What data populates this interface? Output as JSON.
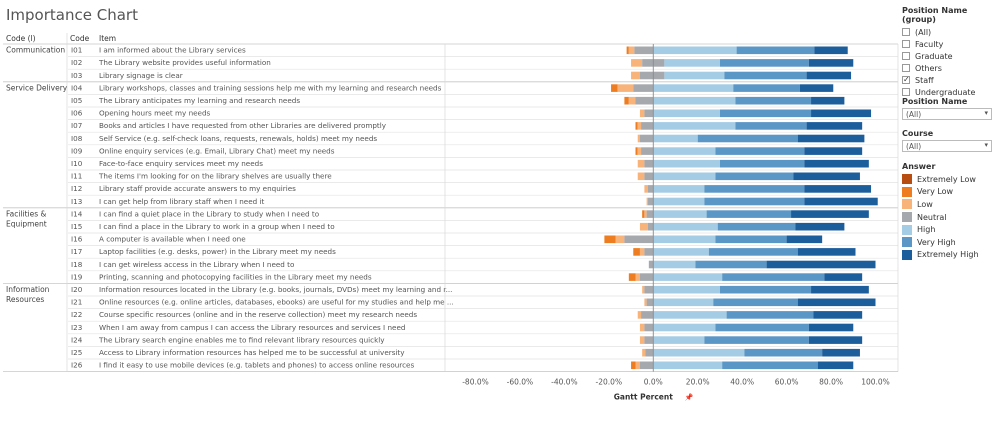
{
  "title": "Importance Chart",
  "columns": {
    "group": "Code (l)",
    "code": "Code",
    "item": "Item"
  },
  "axis": {
    "label": "Gantt Percent",
    "pin": "📌",
    "ticks": [
      "-80.0%",
      "-60.0%",
      "-40.0%",
      "-20.0%",
      "0.0%",
      "20.0%",
      "40.0%",
      "60.0%",
      "80.0%",
      "100.0%"
    ],
    "tick_values": [
      -80,
      -60,
      -40,
      -20,
      0,
      20,
      40,
      60,
      80,
      100
    ],
    "min": -92,
    "max": 108
  },
  "groups": [
    {
      "label_lines": [
        "Communication"
      ],
      "start": 0,
      "end": 2
    },
    {
      "label_lines": [
        "Service Delivery"
      ],
      "start": 3,
      "end": 12
    },
    {
      "label_lines": [
        "Facilities &",
        "Equipment"
      ],
      "start": 13,
      "end": 18
    },
    {
      "label_lines": [
        "Information",
        "Resources"
      ],
      "start": 19,
      "end": 25
    }
  ],
  "filters": {
    "position_group": {
      "title": "Position Name (group)",
      "options": [
        {
          "label": "(All)",
          "checked": false
        },
        {
          "label": "Faculty",
          "checked": false
        },
        {
          "label": "Graduate",
          "checked": false
        },
        {
          "label": "Others",
          "checked": false
        },
        {
          "label": "Staff",
          "checked": true
        },
        {
          "label": "Undergraduate",
          "checked": false
        }
      ]
    },
    "position_name": {
      "title": "Position Name",
      "value": "(All)"
    },
    "course": {
      "title": "Course",
      "value": "(All)"
    }
  },
  "legend": {
    "title": "Answer",
    "items": [
      {
        "label": "Extremely Low",
        "color": "#b84d12"
      },
      {
        "label": "Very Low",
        "color": "#ee7d21"
      },
      {
        "label": "Low",
        "color": "#f8b37a"
      },
      {
        "label": "Neutral",
        "color": "#a5a9ae"
      },
      {
        "label": "High",
        "color": "#a4cce5"
      },
      {
        "label": "Very High",
        "color": "#5b97c6"
      },
      {
        "label": "Extremely High",
        "color": "#1c5d9c"
      }
    ]
  },
  "chart_data": {
    "type": "bar",
    "subtype": "diverging-stacked-gantt",
    "title": "Importance Chart",
    "xlabel": "Gantt Percent",
    "xlim": [
      -92,
      108
    ],
    "series_names": [
      "Extremely Low",
      "Very Low",
      "Low",
      "Neutral",
      "High",
      "Very High",
      "Extremely High"
    ],
    "rows": [
      {
        "code": "I01",
        "item": "I am informed about the Library services",
        "start": -12,
        "values": [
          0,
          1,
          2.5,
          8.5,
          37.5,
          35,
          15
        ]
      },
      {
        "code": "I02",
        "item": "The Library website provides useful information",
        "start": -10,
        "values": [
          0,
          0,
          5,
          10,
          25,
          40,
          20
        ]
      },
      {
        "code": "I03",
        "item": "Library signage is clear",
        "start": -10,
        "values": [
          0,
          0,
          4,
          11,
          27,
          37,
          20
        ]
      },
      {
        "code": "I04",
        "item": "Library workshops, classes and training sessions help me with my learning and research needs",
        "start": -19,
        "values": [
          0,
          3,
          7,
          9,
          36,
          30,
          15
        ]
      },
      {
        "code": "I05",
        "item": "The Library anticipates my learning and research needs",
        "start": -13,
        "values": [
          0,
          2,
          3,
          8,
          37,
          34,
          15
        ]
      },
      {
        "code": "I06",
        "item": "Opening hours meet my needs",
        "start": -6,
        "values": [
          0,
          0,
          2,
          4,
          30,
          41,
          27
        ]
      },
      {
        "code": "I07",
        "item": "Books and articles I have requested from other Libraries are delivered promptly",
        "start": -8,
        "values": [
          0,
          1,
          1.5,
          5.5,
          37,
          32,
          25
        ]
      },
      {
        "code": "I08",
        "item": "Self Service (e.g. self-check loans, requests, renewals, holds) meet my needs",
        "start": -7,
        "values": [
          0,
          0,
          1,
          6,
          20,
          45,
          30
        ]
      },
      {
        "code": "I09",
        "item": "Online enquiry services (e.g. Email, Library Chat) meet my needs",
        "start": -8,
        "values": [
          0,
          1,
          1.5,
          5.5,
          28,
          40,
          26
        ]
      },
      {
        "code": "I10",
        "item": "Face-to-face enquiry services meet my needs",
        "start": -7,
        "values": [
          0,
          0,
          3,
          4,
          30,
          38,
          29
        ]
      },
      {
        "code": "I11",
        "item": "The items I'm looking for on the library shelves are usually there",
        "start": -7,
        "values": [
          0,
          0,
          3,
          4,
          28,
          35,
          30
        ]
      },
      {
        "code": "I12",
        "item": "Library staff provide accurate answers to my enquiries",
        "start": -4,
        "values": [
          0,
          0,
          1.5,
          2.5,
          23,
          45,
          30
        ]
      },
      {
        "code": "I13",
        "item": "I can get help from library staff when I need it",
        "start": -3,
        "values": [
          0,
          0,
          0.5,
          2.5,
          23,
          45,
          33
        ]
      },
      {
        "code": "I14",
        "item": "I can find a quiet place in the Library to study when I need to",
        "start": -5,
        "values": [
          0,
          1,
          1,
          3,
          24,
          38,
          35
        ]
      },
      {
        "code": "I15",
        "item": "I can find a place in the Library to work in a group when I need to",
        "start": -6,
        "values": [
          0,
          0,
          3.5,
          2.5,
          29,
          35,
          22
        ]
      },
      {
        "code": "I16",
        "item": "A computer is available when I need one",
        "start": -22,
        "values": [
          0,
          5,
          4,
          13,
          28,
          32,
          16
        ]
      },
      {
        "code": "I17",
        "item": "Laptop facilities (e.g. desks, power) in the Library meet my needs",
        "start": -9,
        "values": [
          0,
          3,
          2,
          4,
          25,
          40,
          26
        ]
      },
      {
        "code": "I18",
        "item": "I can get wireless access in the Library when I need to",
        "start": -2,
        "values": [
          0,
          0,
          0,
          2,
          19,
          32,
          49
        ]
      },
      {
        "code": "I19",
        "item": "Printing, scanning and photocopying facilities in the Library meet my needs",
        "start": -11,
        "values": [
          0,
          3,
          2,
          6,
          31,
          46,
          17
        ]
      },
      {
        "code": "I20",
        "item": "Information resources located in the Library (e.g. books, journals, DVDs) meet my learning and r...",
        "start": -5,
        "values": [
          0,
          0,
          1,
          4,
          30,
          41,
          26
        ]
      },
      {
        "code": "I21",
        "item": "Online resources (e.g. online articles, databases, ebooks) are useful for my studies and help me ...",
        "start": -4,
        "values": [
          0,
          0,
          1,
          3,
          27,
          38,
          35
        ]
      },
      {
        "code": "I22",
        "item": "Course specific resources (online and in the reserve collection) meet my research needs",
        "start": -7,
        "values": [
          0,
          0,
          1.5,
          5.5,
          33,
          39,
          22
        ]
      },
      {
        "code": "I23",
        "item": "When I am away from campus I can access the Library resources and services I need",
        "start": -6,
        "values": [
          0,
          0,
          2,
          4,
          28,
          42,
          20
        ]
      },
      {
        "code": "I24",
        "item": "The Library search engine enables me to find relevant library resources quickly",
        "start": -6,
        "values": [
          0,
          0,
          2,
          4,
          23,
          47,
          24
        ]
      },
      {
        "code": "I25",
        "item": "Access to Library information resources has helped me to be successful at university",
        "start": -5,
        "values": [
          0,
          0,
          1.5,
          3.5,
          41,
          35,
          17
        ]
      },
      {
        "code": "I26",
        "item": "I find it easy to use mobile devices (e.g. tablets and phones) to access online resources",
        "start": -10,
        "values": [
          0,
          2,
          2,
          6,
          31,
          43,
          16
        ]
      }
    ]
  }
}
